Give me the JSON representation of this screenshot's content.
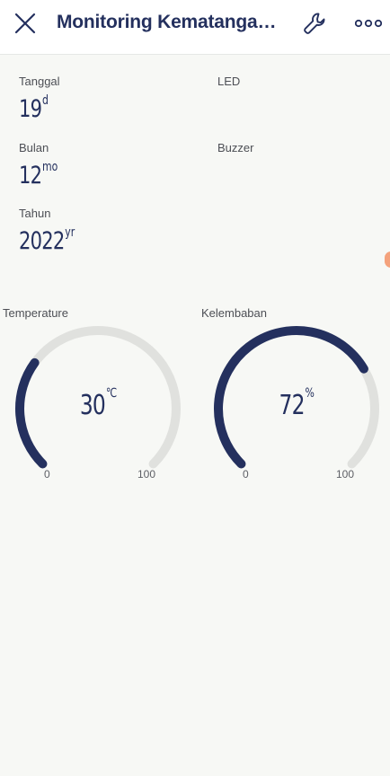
{
  "header": {
    "title": "Monitoring Kematangan Buah",
    "close_icon": "close-icon",
    "settings_icon": "wrench-icon",
    "more_icon": "more-horizontal-icon"
  },
  "info": {
    "tanggal": {
      "label": "Tanggal",
      "value": "19",
      "unit": "d"
    },
    "bulan": {
      "label": "Bulan",
      "value": "12",
      "unit": "mo"
    },
    "tahun": {
      "label": "Tahun",
      "value": "2022",
      "unit": "yr"
    },
    "led": {
      "label": "LED"
    },
    "buzzer": {
      "label": "Buzzer"
    }
  },
  "gauges": {
    "temperature": {
      "label": "Temperature",
      "value": "30",
      "unit": "℃",
      "min": "0",
      "max": "100",
      "fraction": 0.3
    },
    "kelembaban": {
      "label": "Kelembaban",
      "value": "72",
      "unit": "%",
      "min": "0",
      "max": "100",
      "fraction": 0.72
    }
  },
  "colors": {
    "accent": "#24305e",
    "track": "#e0e1de",
    "background": "#f7f8f5",
    "side_dot": "#f4a27c"
  }
}
